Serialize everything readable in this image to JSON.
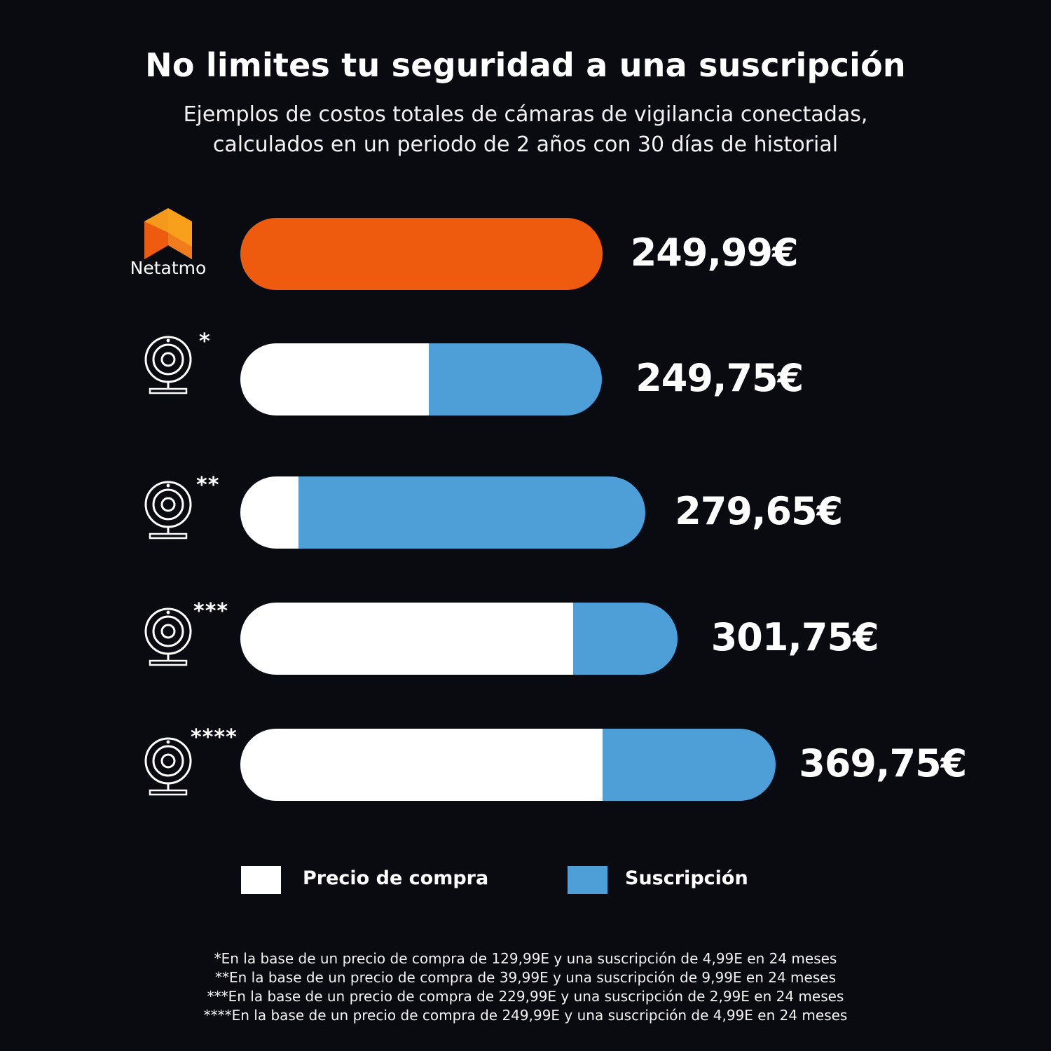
{
  "title": "No limites tu seguridad a una suscripción",
  "subtitle": [
    "Ejemplos de costos totales de cámaras de vigilancia conectadas,",
    "calculados en un periodo de 2 años con 30 días de historial"
  ],
  "brand": {
    "name": "Netatmo",
    "logo_colors": [
      "#f8a01b",
      "#f07c1b",
      "#ee5a0e"
    ]
  },
  "colors": {
    "background": "#0a0b11",
    "netatmo": "#ee5a0e",
    "purchase": "#ffffff",
    "subscription": "#4e9ed8"
  },
  "chart_data": {
    "type": "bar",
    "orientation": "horizontal",
    "stacked": true,
    "rows": [
      {
        "icon": "netatmo-logo",
        "marker": "",
        "label": "Netatmo",
        "purchase": 249.99,
        "subscription": 0,
        "total_label": "249,99€"
      },
      {
        "icon": "camera-icon",
        "marker": "*",
        "label": "",
        "purchase": 129.99,
        "subscription": 119.76,
        "total_label": "249,75€"
      },
      {
        "icon": "camera-icon",
        "marker": "**",
        "label": "",
        "purchase": 39.99,
        "subscription": 239.76,
        "total_label": "279,65€"
      },
      {
        "icon": "camera-icon",
        "marker": "***",
        "label": "",
        "purchase": 229.99,
        "subscription": 71.76,
        "total_label": "301,75€"
      },
      {
        "icon": "camera-icon",
        "marker": "****",
        "label": "",
        "purchase": 249.99,
        "subscription": 119.76,
        "total_label": "369,75€"
      }
    ],
    "series": [
      {
        "name": "Precio de compra",
        "color": "#ffffff"
      },
      {
        "name": "Suscripción",
        "color": "#4e9ed8"
      }
    ],
    "legend_position": "bottom",
    "grid": false,
    "axes_visible": false
  },
  "legend": {
    "purchase_label": "Precio de compra",
    "subscription_label": "Suscripción"
  },
  "footnotes": [
    "*En la base de un precio de compra de 129,99E y una suscripción de 4,99E en 24 meses",
    "**En la base de un precio de compra de 39,99E y una suscripción de 9,99E en 24 meses",
    "***En la base de un precio de compra de 229,99E y una suscripción de 2,99E en 24 meses",
    "****En la base de un precio de compra de 249,99E y una suscripción de 4,99E en 24 meses"
  ]
}
